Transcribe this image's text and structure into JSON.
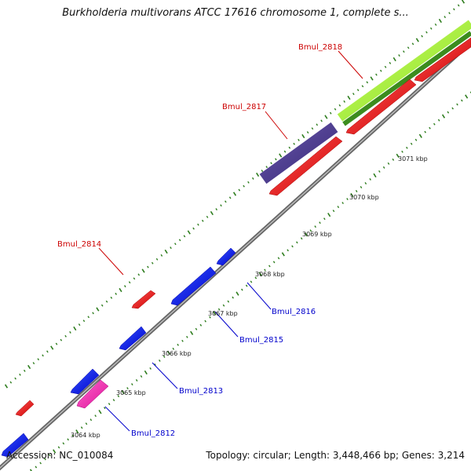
{
  "title": "Burkholderia multivorans ATCC 17616 chromosome 1, complete s...",
  "accession": "Accession: NC_010084",
  "summary": "Topology: circular; Length: 3,448,466 bp; Genes: 3,214",
  "colors": {
    "backbone": "#888888",
    "tick": "#2e7d1e",
    "forward_gene": "#ee1111",
    "reverse_gene": "#1111ee",
    "highlight_gene": "#ee22aa",
    "operon": "#4a3a8a",
    "rna_light": "#99ee33",
    "rna_dark": "#3c8c1e"
  },
  "scale": {
    "labels": [
      "3064 kbp",
      "3065 kbp",
      "3066 kbp",
      "3067 kbp",
      "3068 kbp",
      "3069 kbp",
      "3070 kbp",
      "3071 kbp"
    ]
  },
  "genes": [
    {
      "name": "Bmul_2812",
      "strand": "reverse"
    },
    {
      "name": "Bmul_2813",
      "strand": "reverse"
    },
    {
      "name": "Bmul_2814",
      "strand": "forward"
    },
    {
      "name": "Bmul_2815",
      "strand": "reverse"
    },
    {
      "name": "Bmul_2816",
      "strand": "reverse"
    },
    {
      "name": "Bmul_2817",
      "strand": "forward"
    },
    {
      "name": "Bmul_2818",
      "strand": "forward"
    }
  ]
}
